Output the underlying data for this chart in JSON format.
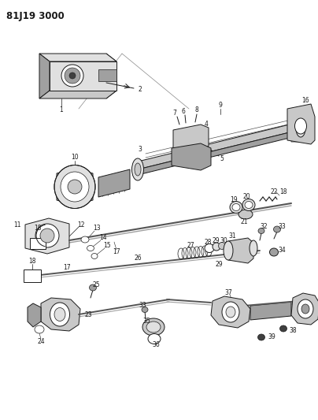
{
  "title": "81J19 3000",
  "bg_color": "#ffffff",
  "lc": "#1a1a1a",
  "gray1": "#c8c8c8",
  "gray2": "#a0a0a0",
  "gray3": "#e0e0e0",
  "dark": "#404040",
  "fs": 5.5,
  "fs_title": 8.5,
  "lw": 0.7,
  "lw_thick": 1.2,
  "lw_thin": 0.4
}
